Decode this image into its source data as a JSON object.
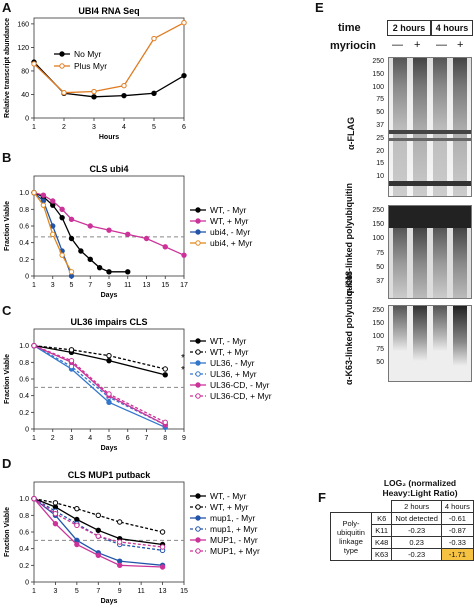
{
  "panels": {
    "A": {
      "letter": "A",
      "title": "UBI4 RNA Seq",
      "ylabel": "Relative transcript abundance",
      "xlabel": "Hours",
      "xticks": [
        "1",
        "2",
        "3",
        "4",
        "5",
        "6"
      ],
      "yticks": [
        "0",
        "40",
        "80",
        "120",
        "160"
      ],
      "legend": [
        "No Myr",
        "Plus Myr"
      ]
    },
    "B": {
      "letter": "B",
      "title": "CLS ubi4",
      "ylabel": "Fraction Viable",
      "xlabel": "Days",
      "xticks": [
        "1",
        "3",
        "5",
        "7",
        "9",
        "11",
        "13",
        "15",
        "17"
      ],
      "yticks": [
        "0",
        "0.2",
        "0.4",
        "0.6",
        "0.8",
        "1.0"
      ],
      "legend": [
        "WT, - Myr",
        "WT, + Myr",
        "ubi4, - Myr",
        "ubi4, + Myr"
      ]
    },
    "C": {
      "letter": "C",
      "title": "UL36 impairs CLS",
      "ylabel": "Fraction Viable",
      "xlabel": "Days",
      "xticks": [
        "1",
        "2",
        "3",
        "4",
        "5",
        "6",
        "7",
        "8",
        "9"
      ],
      "yticks": [
        "0",
        "0.2",
        "0.4",
        "0.6",
        "0.8",
        "1.0"
      ],
      "legend": [
        "WT, - Myr",
        "WT, + Myr",
        "UL36, - Myr",
        "UL36, + Myr",
        "UL36-CD, - Myr",
        "UL36-CD, + Myr"
      ],
      "star": "*"
    },
    "D": {
      "letter": "D",
      "title": "CLS MUP1 putback",
      "ylabel": "Fraction Viable",
      "xlabel": "Days",
      "xticks": [
        "1",
        "3",
        "5",
        "7",
        "9",
        "11",
        "13",
        "15"
      ],
      "yticks": [
        "0",
        "0.2",
        "0.4",
        "0.6",
        "0.8",
        "1.0"
      ],
      "legend": [
        "WT, - Myr",
        "WT, + Myr",
        "mup1, - Myr",
        "mup1, + Myr",
        "MUP1, - Myr",
        "MUP1, + Myr"
      ]
    },
    "E": {
      "letter": "E",
      "time_label": "time",
      "time_2h": "2 hours",
      "time_4h": "4 hours",
      "myriocin_label": "myriocin",
      "signs": [
        "—",
        "+",
        "—",
        "+"
      ],
      "blot1_label": "α-FLAG",
      "blot2_label": "α-K48-linked polyubiquitin",
      "blot3_label": "α-K63-linked polyubiquitin",
      "mw1": [
        "250",
        "150",
        "100",
        "75",
        "50",
        "37",
        "25",
        "20",
        "15",
        "10"
      ],
      "mw2": [
        "250",
        "150",
        "100",
        "75",
        "50",
        "37"
      ],
      "mw3": [
        "250",
        "150",
        "100",
        "75",
        "50"
      ]
    },
    "F": {
      "letter": "F",
      "header": "LOG₂ (normalized Heavy:Light Ratio)",
      "col_2h": "2 hours",
      "col_4h": "4 hours",
      "row_label": "Poly-ubiquitin linkage type",
      "rows": [
        {
          "k": "K6",
          "h2": "Not detected",
          "h4": "-0.61"
        },
        {
          "k": "K11",
          "h2": "-0.23",
          "h4": "-0.87"
        },
        {
          "k": "K48",
          "h2": "0.23",
          "h4": "-0.33"
        },
        {
          "k": "K63",
          "h2": "-0.23",
          "h4": "-1.71"
        }
      ],
      "highlight_color": "#f5c242"
    }
  },
  "chart_data": [
    {
      "type": "line",
      "title": "UBI4 RNA Seq",
      "xlabel": "Hours",
      "ylabel": "Relative transcript abundance",
      "ylim": [
        0,
        170
      ],
      "x": [
        1,
        2,
        3,
        4,
        5,
        6
      ],
      "series": [
        {
          "name": "No Myr",
          "values": [
            95,
            42,
            36,
            38,
            42,
            72
          ],
          "color": "#000000"
        },
        {
          "name": "Plus Myr",
          "values": [
            92,
            43,
            45,
            55,
            135,
            162
          ],
          "color": "#e07b20"
        }
      ]
    },
    {
      "type": "line",
      "title": "CLS ubi4",
      "xlabel": "Days",
      "ylabel": "Fraction Viable",
      "ylim": [
        0,
        1.2
      ],
      "xlim": [
        1,
        17
      ],
      "series": [
        {
          "name": "WT, - Myr",
          "x": [
            1,
            2,
            3,
            4,
            5,
            6,
            7,
            8,
            9,
            11
          ],
          "values": [
            1.0,
            0.95,
            0.85,
            0.7,
            0.45,
            0.3,
            0.2,
            0.1,
            0.05,
            0.05
          ],
          "color": "#000000"
        },
        {
          "name": "WT, + Myr",
          "x": [
            1,
            2,
            3,
            4,
            5,
            7,
            9,
            11,
            13,
            15,
            17
          ],
          "values": [
            1.0,
            0.97,
            0.9,
            0.8,
            0.68,
            0.6,
            0.55,
            0.5,
            0.45,
            0.35,
            0.25
          ],
          "color": "#cc3399"
        },
        {
          "name": "ubi4, - Myr",
          "x": [
            1,
            2,
            3,
            4,
            5
          ],
          "values": [
            1.0,
            0.9,
            0.6,
            0.3,
            0.0
          ],
          "color": "#2255aa"
        },
        {
          "name": "ubi4, + Myr",
          "x": [
            1,
            2,
            3,
            4,
            5
          ],
          "values": [
            1.0,
            0.85,
            0.5,
            0.25,
            0.05
          ],
          "color": "#e08a20"
        }
      ],
      "dashed_line": 0.47
    },
    {
      "type": "line",
      "title": "UL36 impairs CLS",
      "xlabel": "Days",
      "ylabel": "Fraction Viable",
      "ylim": [
        0,
        1.2
      ],
      "xlim": [
        1,
        9
      ],
      "x": [
        1,
        3,
        5,
        8
      ],
      "series": [
        {
          "name": "WT, - Myr",
          "values": [
            1.0,
            0.92,
            0.82,
            0.65
          ],
          "color": "#000000"
        },
        {
          "name": "WT, + Myr",
          "values": [
            1.0,
            0.95,
            0.88,
            0.72
          ],
          "color": "#000000"
        },
        {
          "name": "UL36, - Myr",
          "values": [
            1.0,
            0.72,
            0.32,
            0.02
          ],
          "color": "#3377cc"
        },
        {
          "name": "UL36, + Myr",
          "values": [
            1.0,
            0.75,
            0.38,
            0.05
          ],
          "color": "#3377cc"
        },
        {
          "name": "UL36-CD, - Myr",
          "values": [
            1.0,
            0.8,
            0.4,
            0.05
          ],
          "color": "#cc3399"
        },
        {
          "name": "UL36-CD, + Myr",
          "values": [
            1.0,
            0.82,
            0.42,
            0.08
          ],
          "color": "#cc3399"
        }
      ],
      "dashed_line": 0.5
    },
    {
      "type": "line",
      "title": "CLS MUP1 putback",
      "xlabel": "Days",
      "ylabel": "Fraction Viable",
      "ylim": [
        0,
        1.2
      ],
      "xlim": [
        1,
        15
      ],
      "x": [
        1,
        3,
        5,
        7,
        9,
        13
      ],
      "series": [
        {
          "name": "WT, - Myr",
          "values": [
            1.0,
            0.9,
            0.75,
            0.62,
            0.52,
            0.45
          ],
          "color": "#000000"
        },
        {
          "name": "WT, + Myr",
          "values": [
            1.0,
            0.95,
            0.88,
            0.8,
            0.72,
            0.6
          ],
          "color": "#000000"
        },
        {
          "name": "mup1, - Myr",
          "values": [
            1.0,
            0.8,
            0.5,
            0.35,
            0.25,
            0.2
          ],
          "color": "#2255aa"
        },
        {
          "name": "mup1, + Myr",
          "values": [
            1.0,
            0.85,
            0.7,
            0.55,
            0.45,
            0.38
          ],
          "color": "#2255aa"
        },
        {
          "name": "MUP1, - Myr",
          "values": [
            1.0,
            0.7,
            0.45,
            0.32,
            0.2,
            0.18
          ],
          "color": "#cc3399"
        },
        {
          "name": "MUP1, + Myr",
          "values": [
            1.0,
            0.82,
            0.68,
            0.55,
            0.48,
            0.42
          ],
          "color": "#cc3399"
        }
      ],
      "dashed_line": 0.5
    }
  ]
}
